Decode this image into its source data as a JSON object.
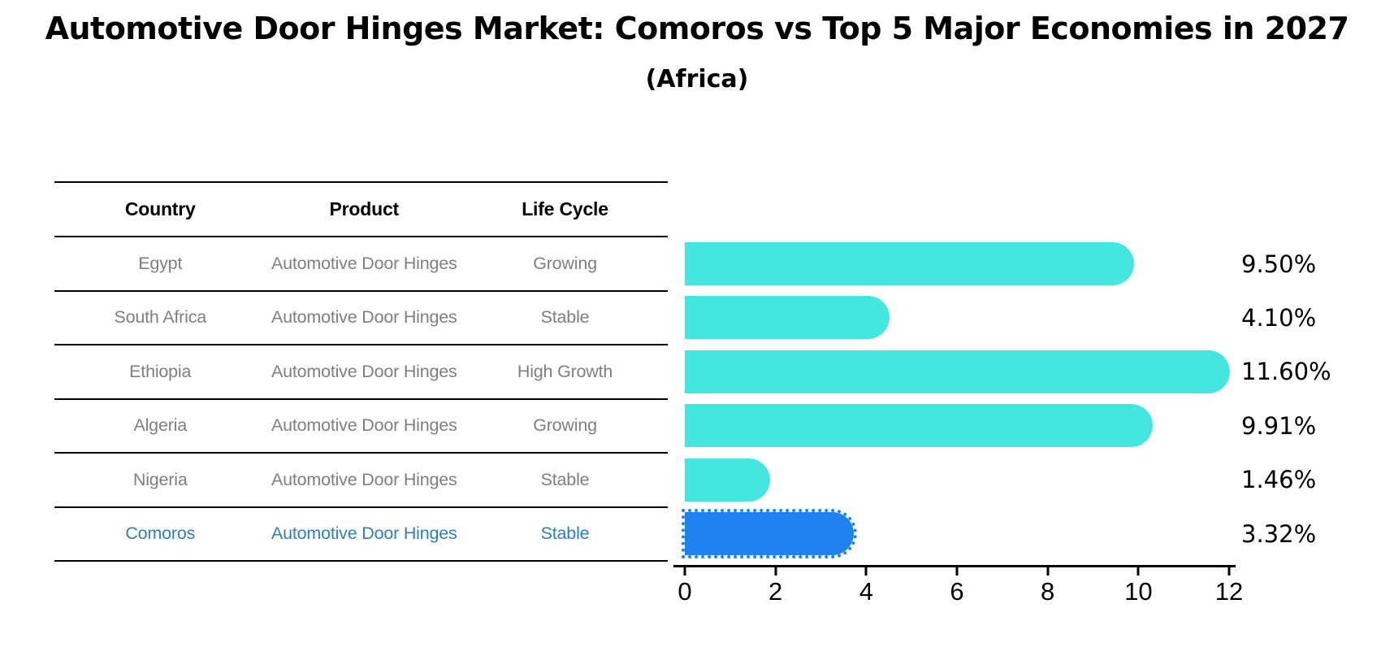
{
  "title": "Automotive Door Hinges Market: Comoros vs Top 5 Major Economies in 2027",
  "subtitle": "(Africa)",
  "table": {
    "columns": [
      "Country",
      "Product",
      "Life Cycle"
    ],
    "rows": [
      {
        "country": "Egypt",
        "product": "Automotive Door Hinges",
        "life_cycle": "Growing",
        "highlight": false
      },
      {
        "country": "South Africa",
        "product": "Automotive Door Hinges",
        "life_cycle": "Stable",
        "highlight": false
      },
      {
        "country": "Ethiopia",
        "product": "Automotive Door Hinges",
        "life_cycle": "High Growth",
        "highlight": false
      },
      {
        "country": "Algeria",
        "product": "Automotive Door Hinges",
        "life_cycle": "Growing",
        "highlight": false
      },
      {
        "country": "Nigeria",
        "product": "Automotive Door Hinges",
        "life_cycle": "Stable",
        "highlight": false
      },
      {
        "country": "Comoros",
        "product": "Automotive Door Hinges",
        "life_cycle": "Stable",
        "highlight": true
      }
    ]
  },
  "chart_data": {
    "type": "bar",
    "orientation": "horizontal",
    "title": "Automotive Door Hinges Market: Comoros vs Top 5 Major Economies in 2027",
    "subtitle": "(Africa)",
    "categories": [
      "Egypt",
      "South Africa",
      "Ethiopia",
      "Algeria",
      "Nigeria",
      "Comoros"
    ],
    "values": [
      9.5,
      4.1,
      11.6,
      9.91,
      1.46,
      3.32
    ],
    "value_labels": [
      "9.50%",
      "4.10%",
      "11.60%",
      "9.91%",
      "1.46%",
      "3.32%"
    ],
    "xlim": [
      0,
      12
    ],
    "xticks": [
      0,
      2,
      4,
      6,
      8,
      10,
      12
    ],
    "xtick_labels": [
      "0",
      "2",
      "4",
      "6",
      "8",
      "10",
      "12"
    ],
    "grid": false,
    "legend": "none",
    "highlight_index": 5,
    "colors": {
      "default_bar": "#44e7e0",
      "highlight_bar": "#1e82f0",
      "highlight_text": "#2e7ec0",
      "row_text": "#7f7f7f",
      "value_label": "#000000"
    }
  }
}
